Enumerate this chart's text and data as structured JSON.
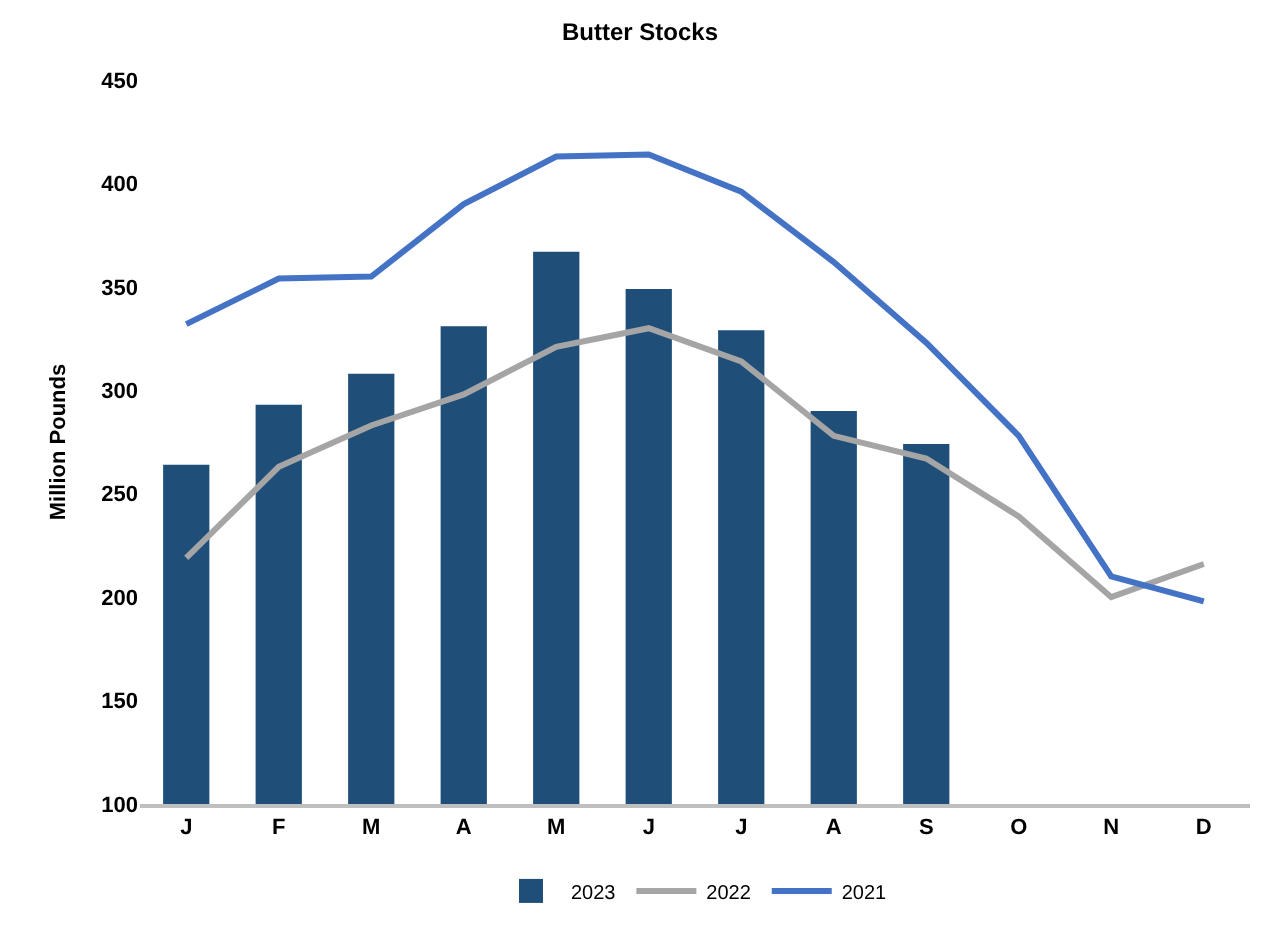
{
  "chart_data": {
    "type": "bar",
    "title": "Butter Stocks",
    "ylabel": "Million Pounds",
    "categories": [
      "J",
      "F",
      "M",
      "A",
      "M",
      "J",
      "J",
      "A",
      "S",
      "O",
      "N",
      "D"
    ],
    "series": [
      {
        "name": "2023",
        "color": "#1f4e79",
        "values": [
          264,
          293,
          308,
          331,
          367,
          349,
          329,
          290,
          274,
          null,
          null,
          null
        ]
      },
      {
        "name": "2022",
        "type": "line",
        "color": "#a5a5a5",
        "values": [
          219,
          263,
          283,
          298,
          321,
          330,
          314,
          278,
          267,
          239,
          200,
          216
        ]
      },
      {
        "name": "2021",
        "type": "line",
        "color": "#4472c4",
        "values": [
          332,
          354,
          355,
          390,
          413,
          414,
          396,
          362,
          323,
          278,
          210,
          198
        ]
      }
    ],
    "ylim": [
      100,
      450
    ],
    "yticks": [
      100,
      150,
      200,
      250,
      300,
      350,
      400,
      450
    ],
    "grid": false,
    "legend": "bottom",
    "marker": "none",
    "line_style": "solid"
  }
}
